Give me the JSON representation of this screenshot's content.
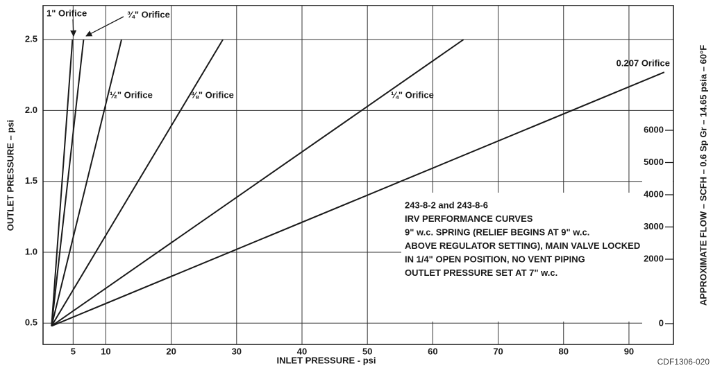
{
  "chart_data": {
    "type": "line",
    "xlabel": "INLET PRESSURE - psi",
    "ylabel": "OUTLET PRESSURE – psi",
    "y2label": "APPROXIMATE FLOW – SCFH – 0.6 Sp Gr – 14.65 psia – 60°F",
    "footnote": "CDF1306-020",
    "annotation": [
      "243-8-2 and 243-8-6",
      "IRV PERFORMANCE CURVES",
      "9\" w.c. SPRING (RELIEF BEGINS AT 9\" w.c.",
      "ABOVE REGULATOR SETTING), MAIN VALVE LOCKED",
      "IN 1/4\" OPEN POSITION, NO VENT PIPING",
      "OUTLET PRESSURE SET AT 7\" w.c."
    ],
    "xlim": [
      0.4,
      96.8
    ],
    "xticks": [
      5,
      10,
      20,
      30,
      40,
      50,
      60,
      70,
      80,
      90
    ],
    "ylim": [
      0.35,
      2.74
    ],
    "yticks": [
      0.5,
      {
        "value": 1,
        "label": "1.0"
      },
      1.5,
      {
        "value": 2,
        "label": "2.0"
      },
      2.5
    ],
    "y2lim": [
      -645,
      9871
    ],
    "y2ticks": [
      0,
      2000,
      3000,
      4000,
      5000,
      6000
    ],
    "grid": true,
    "series": [
      {
        "name": "1\" Orifice",
        "color": "#1a1a1a",
        "x": [
          1.7,
          4.9
        ],
        "values": [
          0.48,
          2.5
        ]
      },
      {
        "name": "¾\" Orifice",
        "color": "#1a1a1a",
        "x": [
          1.7,
          6.6
        ],
        "values": [
          0.48,
          2.5
        ]
      },
      {
        "name": "½\" Orifice",
        "color": "#1a1a1a",
        "x": [
          1.7,
          12.4
        ],
        "values": [
          0.48,
          2.5
        ]
      },
      {
        "name": "⅜\" Orifice",
        "color": "#1a1a1a",
        "x": [
          1.7,
          27.9
        ],
        "values": [
          0.48,
          2.5
        ]
      },
      {
        "name": "¼\" Orifice",
        "color": "#1a1a1a",
        "x": [
          1.7,
          64.7
        ],
        "values": [
          0.48,
          2.5
        ]
      },
      {
        "name": "0.207 Orifice",
        "color": "#1a1a1a",
        "x": [
          1.7,
          95.4
        ],
        "values": [
          0.48,
          2.27
        ]
      }
    ]
  }
}
